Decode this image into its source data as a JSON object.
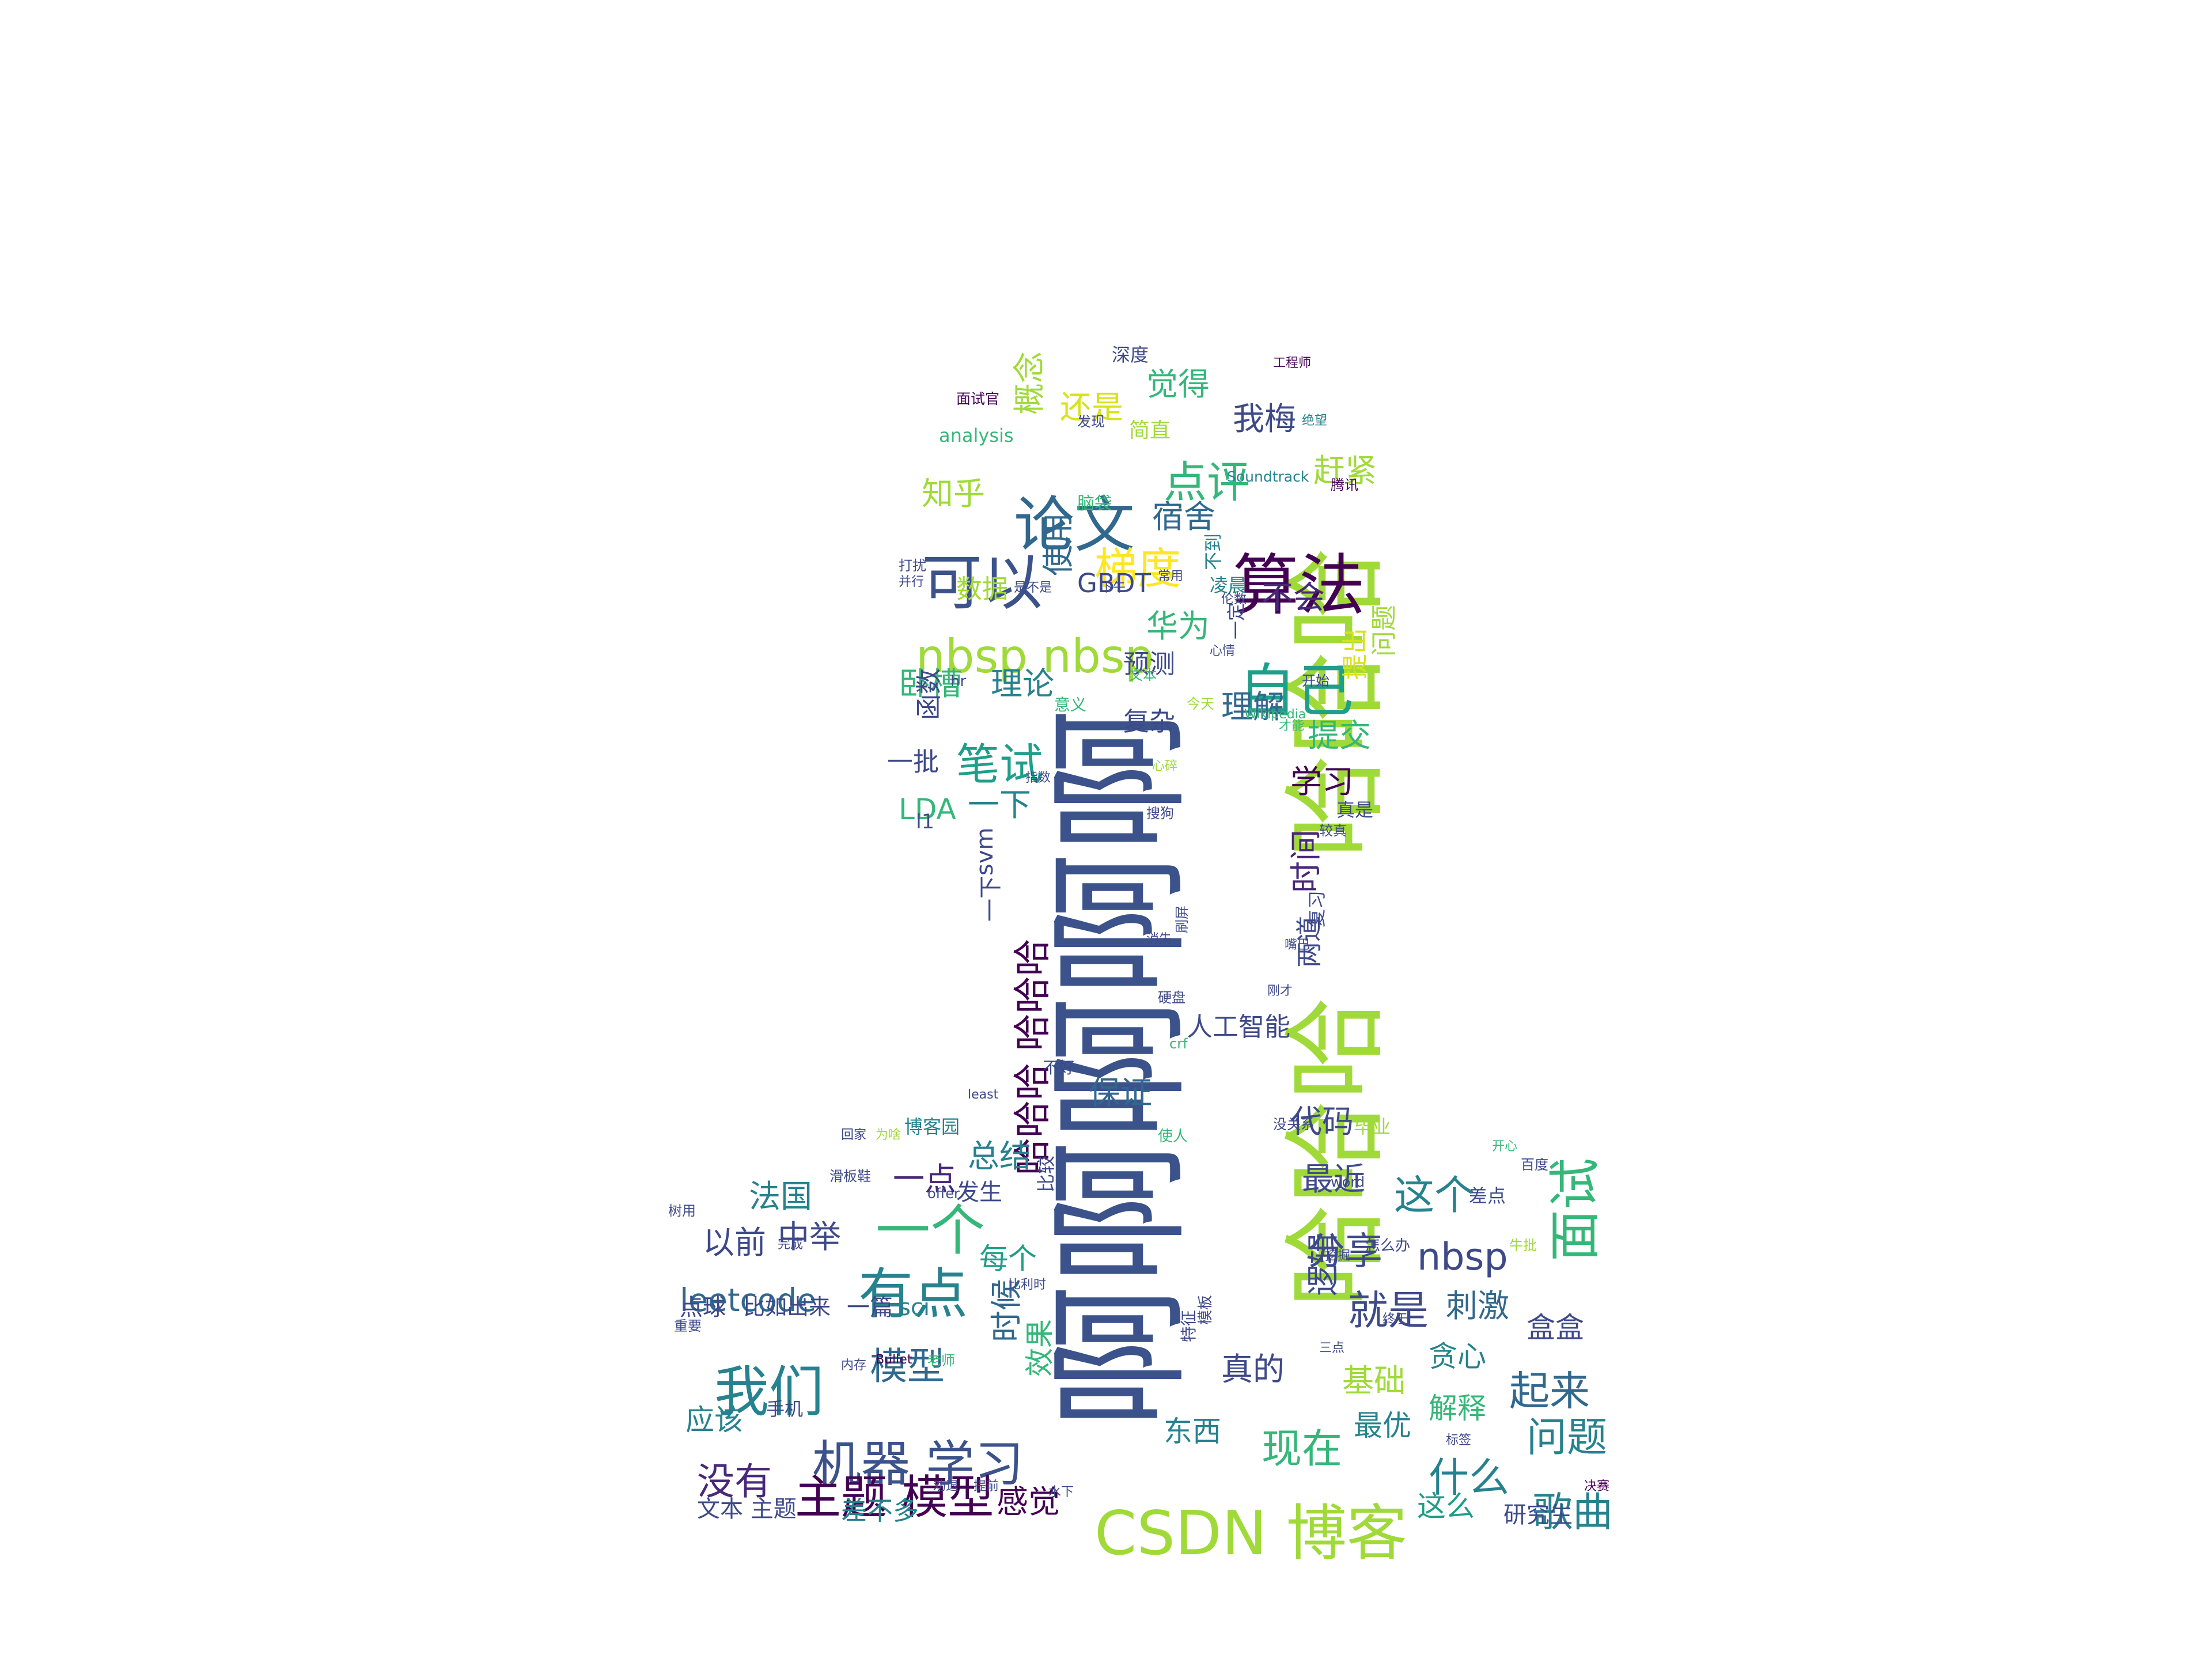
{
  "words": [
    {
      "text": "啊啊啊啊啊",
      "color": "#3b528b",
      "rot": -90
    },
    {
      "text": "哈哈哈",
      "color": "#a0da39",
      "rot": -90
    },
    {
      "text": "哈哈哈",
      "color": "#a0da39",
      "rot": -90
    },
    {
      "text": "CSDN 博客",
      "color": "#a0da39",
      "rot": 0
    },
    {
      "text": "算法",
      "color": "#440154",
      "rot": 0
    },
    {
      "text": "可以",
      "color": "#3b528b",
      "rot": 0
    },
    {
      "text": "论文",
      "color": "#31688e",
      "rot": 0
    },
    {
      "text": "自己",
      "color": "#1f9e89",
      "rot": 0
    },
    {
      "text": "nbsp nbsp",
      "color": "#a0da39",
      "rot": 0
    },
    {
      "text": "机器 学习",
      "color": "#3b528b",
      "rot": 0
    },
    {
      "text": "我们",
      "color": "#26828e",
      "rot": 0
    },
    {
      "text": "有点",
      "color": "#26828e",
      "rot": 0
    },
    {
      "text": "一个",
      "color": "#35b779",
      "rot": 0
    },
    {
      "text": "面试",
      "color": "#35b779",
      "rot": -90
    },
    {
      "text": "主题 模型",
      "color": "#440154",
      "rot": 0
    },
    {
      "text": "梯度",
      "color": "#fde725",
      "rot": 0
    },
    {
      "text": "点评",
      "color": "#35b779",
      "rot": 0
    },
    {
      "text": "笔试",
      "color": "#1f9e89",
      "rot": 0
    },
    {
      "text": "哈哈哈 哈哈哈",
      "color": "#440154",
      "rot": -90
    },
    {
      "text": "问题",
      "color": "#26828e",
      "rot": 0
    },
    {
      "text": "歌曲",
      "color": "#26828e",
      "rot": 0
    },
    {
      "text": "什么",
      "color": "#26828e",
      "rot": 0
    },
    {
      "text": "现在",
      "color": "#35b779",
      "rot": 0
    },
    {
      "text": "起来",
      "color": "#31688e",
      "rot": 0
    },
    {
      "text": "就是",
      "color": "#3e4989",
      "rot": 0
    },
    {
      "text": "这个",
      "color": "#26828e",
      "rot": 0
    },
    {
      "text": "分享",
      "color": "#3e4989",
      "rot": 0
    },
    {
      "text": "nbsp",
      "color": "#3e4989",
      "rot": 0
    },
    {
      "text": "模型",
      "color": "#31688e",
      "rot": 0
    },
    {
      "text": "没有",
      "color": "#482878",
      "rot": 0
    },
    {
      "text": "leetcode",
      "color": "#31688e",
      "rot": 0
    },
    {
      "text": "还是",
      "color": "#d8e219",
      "rot": 0
    },
    {
      "text": "觉得",
      "color": "#35b779",
      "rot": 0
    },
    {
      "text": "我梅",
      "color": "#3e4989",
      "rot": 0
    },
    {
      "text": "赶紧",
      "color": "#a0da39",
      "rot": 0
    },
    {
      "text": "知乎",
      "color": "#a0da39",
      "rot": 0
    },
    {
      "text": "宿舍",
      "color": "#31688e",
      "rot": 0
    },
    {
      "text": "概念",
      "color": "#a0da39",
      "rot": -90
    },
    {
      "text": "使用",
      "color": "#31688e",
      "rot": -90
    },
    {
      "text": "华为",
      "color": "#35b779",
      "rot": 0
    },
    {
      "text": "不会",
      "color": "#482878",
      "rot": 0
    },
    {
      "text": "卧槽",
      "color": "#35b779",
      "rot": 0
    },
    {
      "text": "理论",
      "color": "#26828e",
      "rot": 0
    },
    {
      "text": "理解",
      "color": "#31688e",
      "rot": 0
    },
    {
      "text": "提交",
      "color": "#35b779",
      "rot": 0
    },
    {
      "text": "学习",
      "color": "#440154",
      "rot": 0
    },
    {
      "text": "一下",
      "color": "#26828e",
      "rot": 0
    },
    {
      "text": "LDA",
      "color": "#35b779",
      "rot": 0
    },
    {
      "text": "时间",
      "color": "#482878",
      "rot": -90
    },
    {
      "text": "两道",
      "color": "#3e4989",
      "rot": -90
    },
    {
      "text": "问题",
      "color": "#a0da39",
      "rot": -90
    },
    {
      "text": "提出",
      "color": "#d8e219",
      "rot": -90
    },
    {
      "text": "数据",
      "color": "#a0da39",
      "rot": 0
    },
    {
      "text": "GBDT",
      "color": "#3e4989",
      "rot": 0
    },
    {
      "text": "预测",
      "color": "#3e4989",
      "rot": 0
    },
    {
      "text": "复杂",
      "color": "#3e4989",
      "rot": 0
    },
    {
      "text": "一批",
      "color": "#3e4989",
      "rot": 0
    },
    {
      "text": "函数",
      "color": "#3e4989",
      "rot": -90
    },
    {
      "text": "总结",
      "color": "#26828e",
      "rot": 0
    },
    {
      "text": "保证",
      "color": "#31688e",
      "rot": 0
    },
    {
      "text": "人工智能",
      "color": "#3e4989",
      "rot": 0
    },
    {
      "text": "代码",
      "color": "#3e4989",
      "rot": 0
    },
    {
      "text": "最近",
      "color": "#3e4989",
      "rot": 0
    },
    {
      "text": "逻辑",
      "color": "#3e4989",
      "rot": -90
    },
    {
      "text": "法国",
      "color": "#26828e",
      "rot": 0
    },
    {
      "text": "一点",
      "color": "#482878",
      "rot": 0
    },
    {
      "text": "以前",
      "color": "#3e4989",
      "rot": 0
    },
    {
      "text": "中举",
      "color": "#3e4989",
      "rot": 0
    },
    {
      "text": "每个",
      "color": "#1f9e89",
      "rot": 0
    },
    {
      "text": "时候",
      "color": "#31688e",
      "rot": -90
    },
    {
      "text": "效果",
      "color": "#35b779",
      "rot": -90
    },
    {
      "text": "真的",
      "color": "#3e4989",
      "rot": 0
    },
    {
      "text": "基础",
      "color": "#a0da39",
      "rot": 0
    },
    {
      "text": "贪心",
      "color": "#26828e",
      "rot": 0
    },
    {
      "text": "刺激",
      "color": "#31688e",
      "rot": 0
    },
    {
      "text": "盒盒",
      "color": "#3e4989",
      "rot": 0
    },
    {
      "text": "东西",
      "color": "#26828e",
      "rot": 0
    },
    {
      "text": "最优",
      "color": "#26828e",
      "rot": 0
    },
    {
      "text": "解释",
      "color": "#35b779",
      "rot": 0
    },
    {
      "text": "应该",
      "color": "#26828e",
      "rot": 0
    },
    {
      "text": "感觉",
      "color": "#440154",
      "rot": 0
    },
    {
      "text": "这么",
      "color": "#1f9e89",
      "rot": 0
    },
    {
      "text": "差不多",
      "color": "#26828e",
      "rot": 0
    },
    {
      "text": "文本 主题",
      "color": "#3e4989",
      "rot": 0
    },
    {
      "text": "研究生",
      "color": "#3e4989",
      "rot": 0
    },
    {
      "text": "一篇",
      "color": "#3e4989",
      "rot": 0
    },
    {
      "text": "sci",
      "color": "#26828e",
      "rot": 0
    },
    {
      "text": "点球",
      "color": "#3e4989",
      "rot": 0
    },
    {
      "text": "比如出来",
      "color": "#3e4989",
      "rot": 0
    },
    {
      "text": "发生",
      "color": "#3e4989",
      "rot": 0
    },
    {
      "text": "svm",
      "color": "#3e4989",
      "rot": -90
    },
    {
      "text": "一下",
      "color": "#3e4989",
      "rot": -90
    },
    {
      "text": "l1",
      "color": "#3e4989",
      "rot": 0
    },
    {
      "text": "深度",
      "color": "#3e4989",
      "rot": 0
    },
    {
      "text": "analysis",
      "color": "#35b779",
      "rot": 0
    },
    {
      "text": "简直",
      "color": "#a0da39",
      "rot": 0
    },
    {
      "text": "Soundtrack",
      "color": "#26828e",
      "rot": 0
    },
    {
      "text": "凌晨",
      "color": "#26828e",
      "rot": 0
    },
    {
      "text": "不到",
      "color": "#26828e",
      "rot": -90
    },
    {
      "text": "一定",
      "color": "#3e4989",
      "rot": -90
    },
    {
      "text": "真是",
      "color": "#3e4989",
      "rot": 0
    },
    {
      "text": "复习",
      "color": "#3e4989",
      "rot": -90
    },
    {
      "text": "毕业",
      "color": "#a0da39",
      "rot": 0
    },
    {
      "text": "博客园",
      "color": "#26828e",
      "rot": 0
    },
    {
      "text": "比较",
      "color": "#3e4989",
      "rot": -90
    },
    {
      "text": "差点",
      "color": "#3e4989",
      "rot": 0
    },
    {
      "text": "手机",
      "color": "#3e4989",
      "rot": 0
    },
    {
      "text": "不好",
      "color": "#3e4989",
      "rot": 0
    },
    {
      "text": "面试官",
      "color": "#440154",
      "rot": 0
    },
    {
      "text": "工程师",
      "color": "#440154",
      "rot": 0
    },
    {
      "text": "发现",
      "color": "#3e4989",
      "rot": 0
    },
    {
      "text": "绝望",
      "color": "#26828e",
      "rot": 0
    },
    {
      "text": "腾讯",
      "color": "#440154",
      "rot": 0
    },
    {
      "text": "脑袋",
      "color": "#35b779",
      "rot": 0
    },
    {
      "text": "常用",
      "color": "#3e4989",
      "rot": 0
    },
    {
      "text": "打扰",
      "color": "#3e4989",
      "rot": 0
    },
    {
      "text": "并行",
      "color": "#3e4989",
      "rot": 0
    },
    {
      "text": "是不是",
      "color": "#3e4989",
      "rot": 0
    },
    {
      "text": "下午",
      "color": "#3e4989",
      "rot": 0
    },
    {
      "text": "伦数",
      "color": "#3e4989",
      "rot": 0
    },
    {
      "text": "心情",
      "color": "#3e4989",
      "rot": 0
    },
    {
      "text": "hr",
      "color": "#3e4989",
      "rot": 0
    },
    {
      "text": "文本",
      "color": "#35b779",
      "rot": 0
    },
    {
      "text": "意义",
      "color": "#35b779",
      "rot": 0
    },
    {
      "text": "今天",
      "color": "#a0da39",
      "rot": 0
    },
    {
      "text": "开始",
      "color": "#3e4989",
      "rot": 0
    },
    {
      "text": "Wikipedia",
      "color": "#35b779",
      "rot": 0
    },
    {
      "text": "才能",
      "color": "#35b779",
      "rot": 0
    },
    {
      "text": "心碎",
      "color": "#a0da39",
      "rot": 0
    },
    {
      "text": "指数",
      "color": "#3e4989",
      "rot": 0
    },
    {
      "text": "搜狗",
      "color": "#3e4989",
      "rot": 0
    },
    {
      "text": "较真",
      "color": "#3e4989",
      "rot": 0
    },
    {
      "text": "刷屏",
      "color": "#3e4989",
      "rot": -90
    },
    {
      "text": "消失",
      "color": "#3e4989",
      "rot": 0
    },
    {
      "text": "嘴巴",
      "color": "#3e4989",
      "rot": 0
    },
    {
      "text": "硬盘",
      "color": "#3e4989",
      "rot": 0
    },
    {
      "text": "刚才",
      "color": "#3e4989",
      "rot": 0
    },
    {
      "text": "crf",
      "color": "#35b779",
      "rot": 0
    },
    {
      "text": "least",
      "color": "#3e4989",
      "rot": 0
    },
    {
      "text": "使人",
      "color": "#35b779",
      "rot": 0
    },
    {
      "text": "没关系",
      "color": "#3e4989",
      "rot": 0
    },
    {
      "text": "开心",
      "color": "#35b779",
      "rot": 0
    },
    {
      "text": "百度",
      "color": "#3e4989",
      "rot": 0
    },
    {
      "text": "回家",
      "color": "#3e4989",
      "rot": 0
    },
    {
      "text": "为啥",
      "color": "#a0da39",
      "rot": 0
    },
    {
      "text": "滑板鞋",
      "color": "#3e4989",
      "rot": 0
    },
    {
      "text": "offer",
      "color": "#3e4989",
      "rot": 0
    },
    {
      "text": "word",
      "color": "#3e4989",
      "rot": 0
    },
    {
      "text": "树用",
      "color": "#3e4989",
      "rot": 0
    },
    {
      "text": "怎么办",
      "color": "#3e4989",
      "rot": 0
    },
    {
      "text": "牛批",
      "color": "#a0da39",
      "rot": 0
    },
    {
      "text": "完成",
      "color": "#3e4989",
      "rot": 0
    },
    {
      "text": "重要",
      "color": "#3e4989",
      "rot": 0
    },
    {
      "text": "内存",
      "color": "#3e4989",
      "rot": 0
    },
    {
      "text": "Bullet",
      "color": "#440154",
      "rot": 0
    },
    {
      "text": "老师",
      "color": "#35b779",
      "rot": 0
    },
    {
      "text": "三点",
      "color": "#3e4989",
      "rot": 0
    },
    {
      "text": "终于",
      "color": "#3e4989",
      "rot": 0
    },
    {
      "text": "标签",
      "color": "#3e4989",
      "rot": 0
    },
    {
      "text": "决赛",
      "color": "#440154",
      "rot": 0
    },
    {
      "text": "水下",
      "color": "#3e4989",
      "rot": 0
    },
    {
      "text": "劝退",
      "color": "#3e4989",
      "rot": 0
    },
    {
      "text": "提前",
      "color": "#3e4989",
      "rot": 0
    },
    {
      "text": "比利时",
      "color": "#3e4989",
      "rot": 0
    },
    {
      "text": "挖掘",
      "color": "#3e4989",
      "rot": 0
    },
    {
      "text": "特征",
      "color": "#3e4989",
      "rot": -90
    },
    {
      "text": "模板",
      "color": "#3e4989",
      "rot": -90
    }
  ]
}
